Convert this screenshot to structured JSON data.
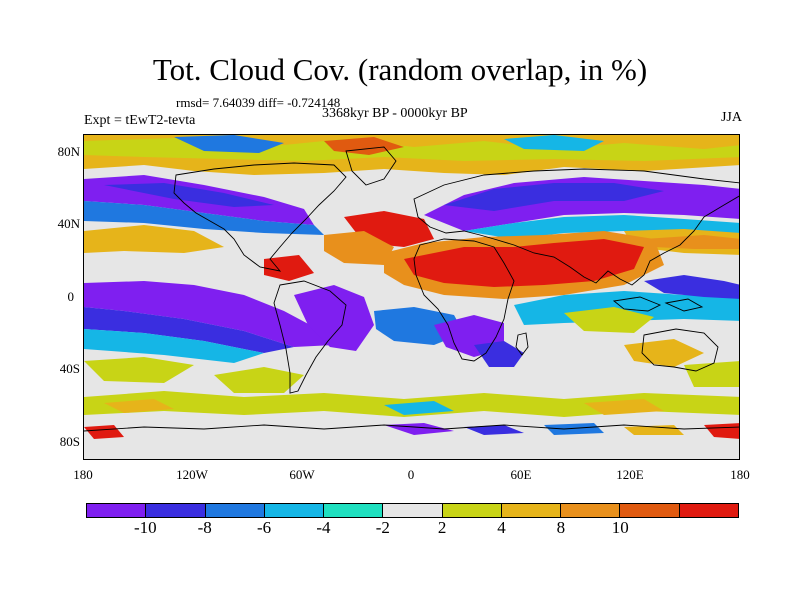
{
  "title": "Tot. Cloud Cov. (random overlap, in %)",
  "stats_line": "rmsd= 7.64039 diff= -0.724148",
  "experiment": "Expt = tEwT2-tevta",
  "period": "3368kyr BP - 0000kyr BP",
  "season": "JJA",
  "map": {
    "projection": "cylindrical-equidistant",
    "lon_range": [
      -180,
      180
    ],
    "lat_range": [
      -90,
      90
    ],
    "lat_ticks": [
      {
        "value": 80,
        "label": "80N"
      },
      {
        "value": 40,
        "label": "40N"
      },
      {
        "value": 0,
        "label": "0"
      },
      {
        "value": -40,
        "label": "40S"
      },
      {
        "value": -80,
        "label": "80S"
      }
    ],
    "lon_ticks": [
      {
        "value": -180,
        "label": "180"
      },
      {
        "value": -120,
        "label": "120W"
      },
      {
        "value": -60,
        "label": "60W"
      },
      {
        "value": 0,
        "label": "0"
      },
      {
        "value": 60,
        "label": "60E"
      },
      {
        "value": 120,
        "label": "120E"
      },
      {
        "value": 180,
        "label": "180"
      }
    ]
  },
  "colorbar": {
    "levels": [
      -10,
      -8,
      -6,
      -4,
      -2,
      2,
      4,
      8,
      10
    ],
    "level_labels": [
      "-10",
      "-8",
      "-6",
      "-4",
      "-2",
      "2",
      "4",
      "8",
      "10"
    ],
    "colors": [
      "#7f1ff0",
      "#3a2ee0",
      "#1f78e0",
      "#15b6e6",
      "#1fe0c0",
      "#e6e6e6",
      "#c8d416",
      "#e6b41a",
      "#e8901c",
      "#e05a10",
      "#e01a10"
    ]
  },
  "chart_data": {
    "type": "heatmap",
    "title": "Tot. Cloud Cov. (random overlap, in %)",
    "variable": "Total cloud cover difference (random overlap), %",
    "experiment": "tEwT2-tevta",
    "period": "3368kyr BP - 0000kyr BP",
    "season": "JJA",
    "rmsd": 7.64039,
    "diff": -0.724148,
    "contour_levels": [
      -10,
      -8,
      -6,
      -4,
      -2,
      2,
      4,
      8,
      10
    ],
    "xlim": [
      -180,
      180
    ],
    "ylim": [
      -90,
      90
    ]
  }
}
